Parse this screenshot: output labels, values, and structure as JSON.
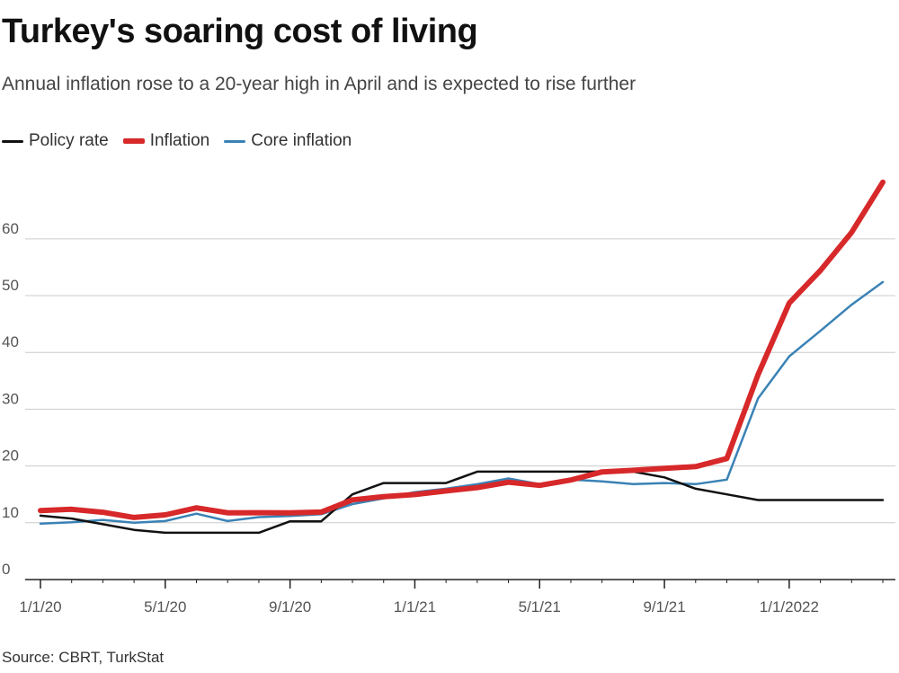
{
  "title": "Turkey's soaring cost of living",
  "subtitle": "Annual inflation rose to a 20-year high in April and is expected to rise further",
  "source": "Source: CBRT, TurkStat",
  "colors": {
    "policy_rate": "#111111",
    "inflation": "#d7282a",
    "core_inflation": "#3a82b5",
    "grid": "#cccccc",
    "axis": "#222222"
  },
  "chart_data": {
    "type": "line",
    "title": "Turkey's soaring cost of living",
    "xlabel": "",
    "ylabel": "",
    "ylim": [
      0,
      72
    ],
    "yticks": [
      0,
      10,
      20,
      30,
      40,
      50,
      60
    ],
    "grid": true,
    "legend_position": "top-left",
    "x": [
      "2020-01",
      "2020-02",
      "2020-03",
      "2020-04",
      "2020-05",
      "2020-06",
      "2020-07",
      "2020-08",
      "2020-09",
      "2020-10",
      "2020-11",
      "2020-12",
      "2021-01",
      "2021-02",
      "2021-03",
      "2021-04",
      "2021-05",
      "2021-06",
      "2021-07",
      "2021-08",
      "2021-09",
      "2021-10",
      "2021-11",
      "2021-12",
      "2022-01",
      "2022-02",
      "2022-03",
      "2022-04"
    ],
    "xticks": [
      {
        "index": 0,
        "label": "1/1/20"
      },
      {
        "index": 4,
        "label": "5/1/20"
      },
      {
        "index": 8,
        "label": "9/1/20"
      },
      {
        "index": 12,
        "label": "1/1/21"
      },
      {
        "index": 16,
        "label": "5/1/21"
      },
      {
        "index": 20,
        "label": "9/1/21"
      },
      {
        "index": 24,
        "label": "1/1/2022"
      }
    ],
    "series": [
      {
        "name": "Policy rate",
        "key": "policy_rate",
        "values": [
          11.25,
          10.75,
          9.75,
          8.75,
          8.25,
          8.25,
          8.25,
          8.25,
          10.25,
          10.25,
          15,
          17,
          17,
          17,
          19,
          19,
          19,
          19,
          19,
          19,
          18,
          16,
          15,
          14,
          14,
          14,
          14,
          14
        ]
      },
      {
        "name": "Inflation",
        "key": "inflation",
        "values": [
          12.15,
          12.37,
          11.86,
          10.94,
          11.39,
          12.62,
          11.76,
          11.77,
          11.75,
          11.89,
          14.03,
          14.6,
          14.97,
          15.61,
          16.19,
          17.14,
          16.59,
          17.53,
          18.95,
          19.25,
          19.58,
          19.89,
          21.31,
          36.08,
          48.69,
          54.44,
          61.14,
          69.97
        ]
      },
      {
        "name": "Core inflation",
        "key": "core_inflation",
        "values": [
          9.86,
          10.1,
          10.5,
          10.0,
          10.3,
          11.6,
          10.3,
          11.0,
          11.2,
          11.5,
          13.3,
          14.3,
          15.4,
          16.0,
          16.8,
          17.8,
          16.8,
          17.6,
          17.3,
          16.8,
          17.0,
          16.8,
          17.6,
          31.9,
          39.3,
          43.8,
          48.4,
          52.4
        ]
      }
    ]
  }
}
